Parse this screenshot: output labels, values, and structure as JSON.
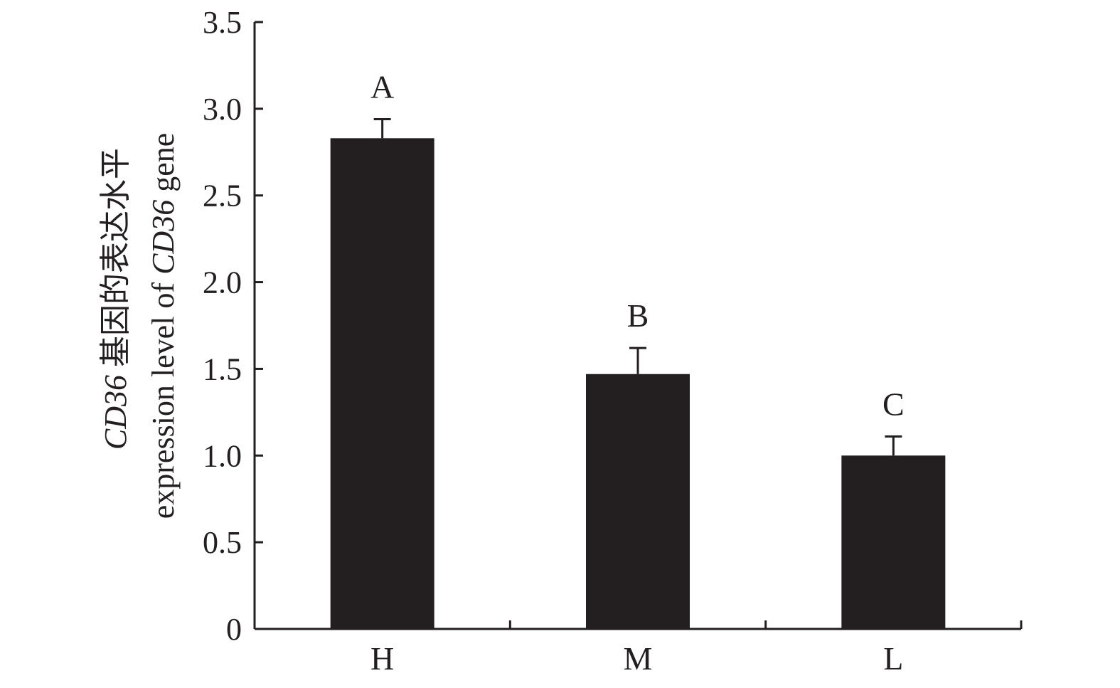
{
  "chart_data": {
    "type": "bar",
    "categories": [
      "H",
      "M",
      "L"
    ],
    "values": [
      2.83,
      1.47,
      1.0
    ],
    "error_upper": [
      2.94,
      1.62,
      1.11
    ],
    "significance_letters": [
      "A",
      "B",
      "C"
    ],
    "ylim": [
      0,
      3.5
    ],
    "yticks": [
      {
        "value": 0,
        "label": "0"
      },
      {
        "value": 0.5,
        "label": "0.5"
      },
      {
        "value": 1.0,
        "label": "1.0"
      },
      {
        "value": 1.5,
        "label": "1.5"
      },
      {
        "value": 2.0,
        "label": "2.0"
      },
      {
        "value": 2.5,
        "label": "2.5"
      },
      {
        "value": 3.0,
        "label": "3.0"
      },
      {
        "value": 3.5,
        "label": "3.5"
      }
    ],
    "ylabel_line1_gene": "CD36",
    "ylabel_line1_rest": " 基因的表达水平",
    "ylabel_line2_prefix": "expression level of ",
    "ylabel_line2_gene": "CD36",
    "ylabel_line2_suffix": " gene",
    "xlabel": "",
    "title": "",
    "grid": false,
    "legend": "none",
    "colors": {
      "bar": "#231f20",
      "axis": "#231f20",
      "text": "#231f20"
    }
  }
}
